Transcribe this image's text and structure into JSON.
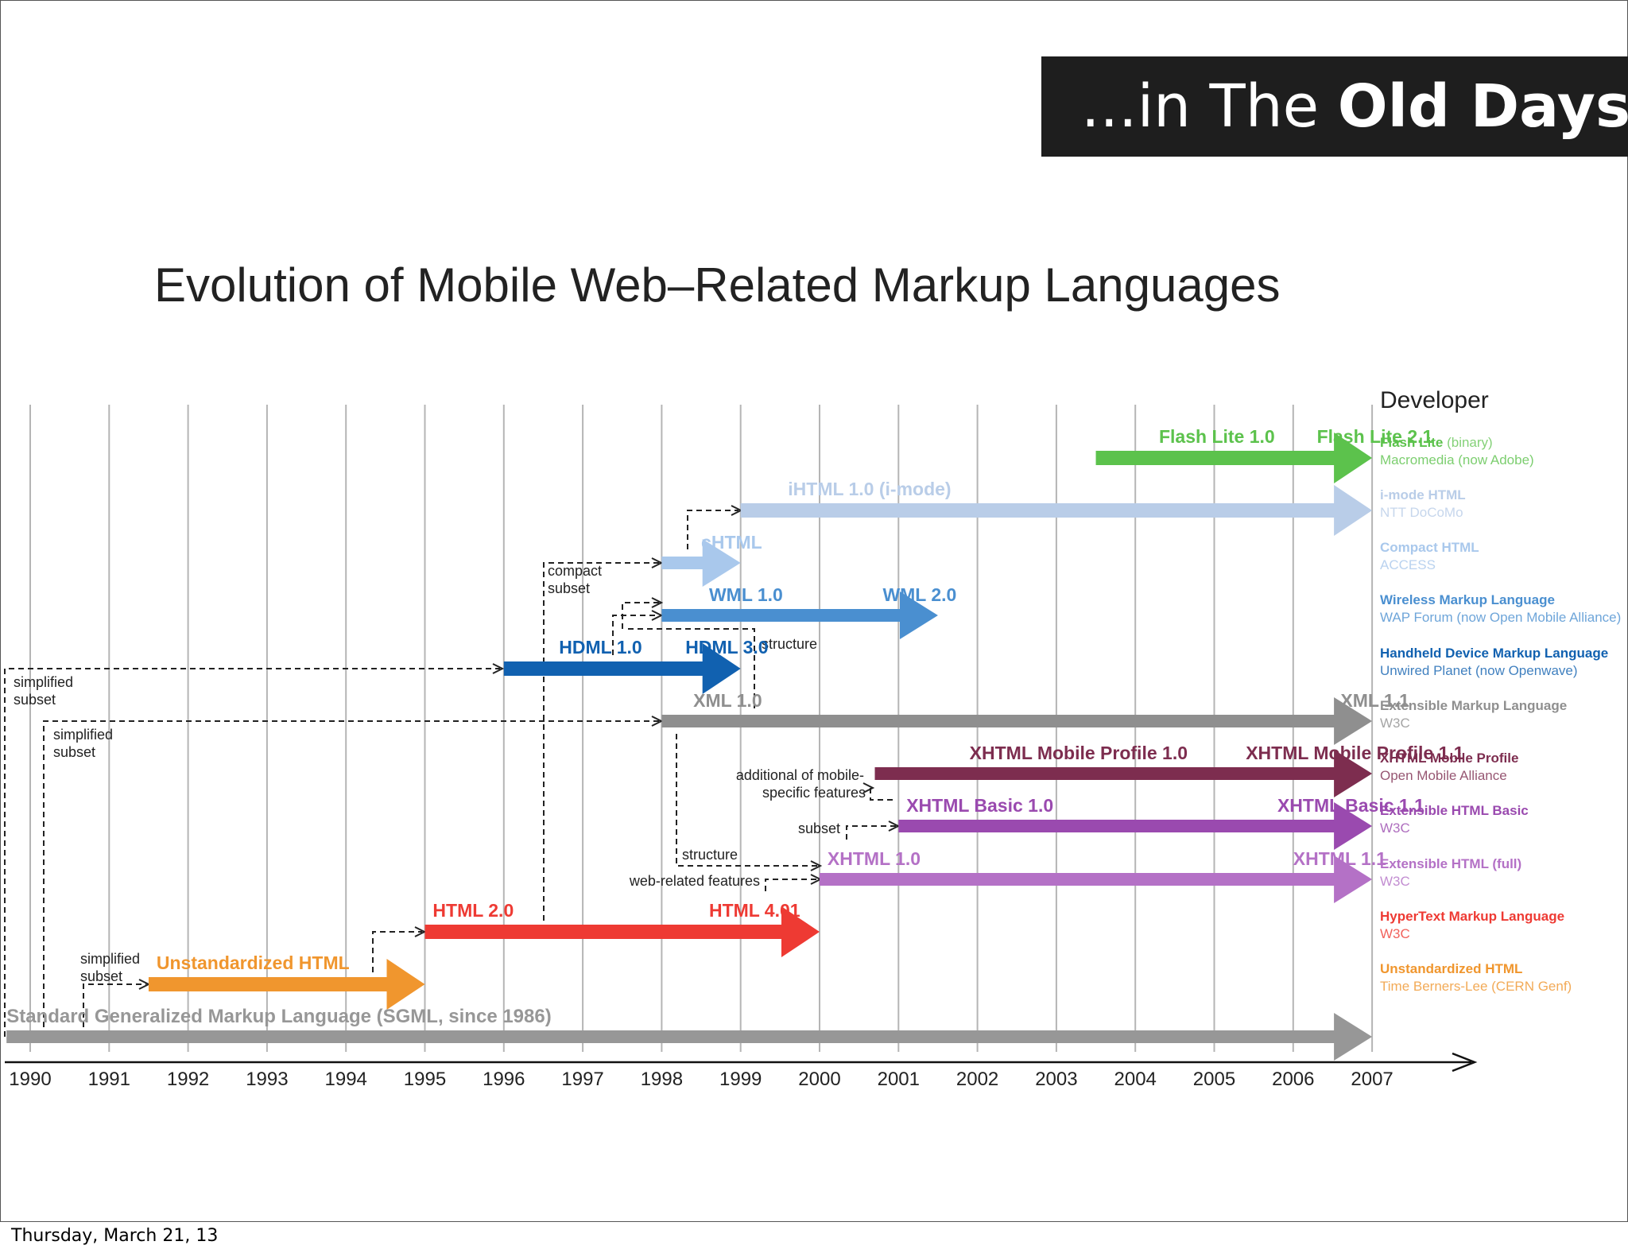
{
  "banner": {
    "prefix": "...in The ",
    "bold": "Old Days"
  },
  "footer": "Thursday, March 21, 13",
  "chart_data": {
    "type": "timeline",
    "title": "Evolution of Mobile Web–Related Markup Languages",
    "developer_header": "Developer",
    "years": [
      "1990",
      "1991",
      "1992",
      "1993",
      "1994",
      "1995",
      "1996",
      "1997",
      "1998",
      "1999",
      "2000",
      "2001",
      "2002",
      "2003",
      "2004",
      "2005",
      "2006",
      "2007"
    ],
    "lanes": [
      {
        "id": "flash",
        "color": "#5cc24c",
        "start": 2003.5,
        "end": 2007,
        "labels": [
          {
            "text": "Flash Lite 1.0",
            "year": 2004.3
          },
          {
            "text": "Flash Lite 2.1",
            "year": 2006.3
          }
        ],
        "dev_name": "Flash Lite",
        "dev_suffix": " (binary)",
        "dev_org": "Macromedia (now Adobe)"
      },
      {
        "id": "ihtml",
        "color": "#b9cde8",
        "start": 1999,
        "end": 2007,
        "labels": [
          {
            "text": "iHTML 1.0 (i-mode)",
            "year": 1999.6
          }
        ],
        "dev_name": "i-mode HTML",
        "dev_suffix": "",
        "dev_org": "NTT DoCoMo"
      },
      {
        "id": "chtml",
        "color": "#a9c8ec",
        "start": 1998,
        "end": 1999,
        "labels": [
          {
            "text": "cHTML",
            "year": 1998.5
          }
        ],
        "dev_name": "Compact HTML",
        "dev_suffix": "",
        "dev_org": "ACCESS"
      },
      {
        "id": "wml",
        "color": "#4a8fd0",
        "start": 1998,
        "end": 2001.5,
        "labels": [
          {
            "text": "WML 1.0",
            "year": 1998.6
          },
          {
            "text": "WML 2.0",
            "year": 2000.8
          }
        ],
        "dev_name": "Wireless Markup Language",
        "dev_suffix": "",
        "dev_org": "WAP Forum (now Open Mobile Alliance)"
      },
      {
        "id": "hdml",
        "color": "#1161b0",
        "start": 1996,
        "end": 1999,
        "labels": [
          {
            "text": "HDML 1.0",
            "year": 1996.7
          },
          {
            "text": "HDML 3.0",
            "year": 1998.3
          }
        ],
        "dev_name": "Handheld Device Markup Language",
        "dev_suffix": "",
        "dev_org": "Unwired Planet (now Openwave)"
      },
      {
        "id": "xml",
        "color": "#8f8f8f",
        "start": 1998,
        "end": 2007,
        "labels": [
          {
            "text": "XML 1.0",
            "year": 1998.4
          },
          {
            "text": "XML 1.1",
            "year": 2006.6
          }
        ],
        "dev_name": "Extensible Markup Language",
        "dev_suffix": "",
        "dev_org": "W3C"
      },
      {
        "id": "xhtmlmp",
        "color": "#7d2d4f",
        "start": 2000.7,
        "end": 2007,
        "labels": [
          {
            "text": "XHTML Mobile Profile 1.0",
            "year": 2001.9
          },
          {
            "text": "XHTML Mobile Profile 1.1",
            "year": 2005.4
          }
        ],
        "dev_name": "XHTML Mobile Profile",
        "dev_suffix": "",
        "dev_org": "Open Mobile Alliance"
      },
      {
        "id": "xhtmlbasic",
        "color": "#9a4aaf",
        "start": 2001,
        "end": 2007,
        "labels": [
          {
            "text": "XHTML Basic 1.0",
            "year": 2001.1
          },
          {
            "text": "XHTML Basic 1.1",
            "year": 2005.8
          }
        ],
        "dev_name": "Extensible HTML Basic",
        "dev_suffix": "",
        "dev_org": "W3C"
      },
      {
        "id": "xhtml",
        "color": "#b471c6",
        "start": 2000,
        "end": 2007,
        "labels": [
          {
            "text": "XHTML 1.0",
            "year": 2000.1
          },
          {
            "text": "XHTML 1.1",
            "year": 2006
          }
        ],
        "dev_name": "Extensible HTML (full)",
        "dev_suffix": "",
        "dev_org": "W3C"
      },
      {
        "id": "html",
        "color": "#ee3a33",
        "start": 1995,
        "end": 2000,
        "labels": [
          {
            "text": "HTML 2.0",
            "year": 1995.1
          },
          {
            "text": "HTML 4.01",
            "year": 1998.6
          }
        ],
        "dev_name": "HyperText Markup Language",
        "dev_suffix": "",
        "dev_org": "W3C"
      },
      {
        "id": "unstd",
        "color": "#f0962e",
        "start": 1991.5,
        "end": 1995,
        "labels": [
          {
            "text": "Unstandardized HTML",
            "year": 1991.6
          }
        ],
        "dev_name": "Unstandardized HTML",
        "dev_suffix": "",
        "dev_org": "Time Berners-Lee (CERN Genf)"
      },
      {
        "id": "sgml",
        "color": "#979797",
        "start": 1989.7,
        "end": 2007,
        "labels": [
          {
            "text": "Standard Generalized Markup Language (SGML, since 1986)",
            "year": 1989.7
          }
        ],
        "dev_name": "",
        "dev_suffix": "",
        "dev_org": ""
      }
    ],
    "annotations": {
      "compact_subset": [
        "compact",
        "subset"
      ],
      "structure": "structure",
      "simplified_subset": [
        "simplified",
        "subset"
      ],
      "additional": [
        "additional of mobile-",
        "specific features"
      ],
      "subset": "subset",
      "web_related": "web-related features"
    }
  }
}
